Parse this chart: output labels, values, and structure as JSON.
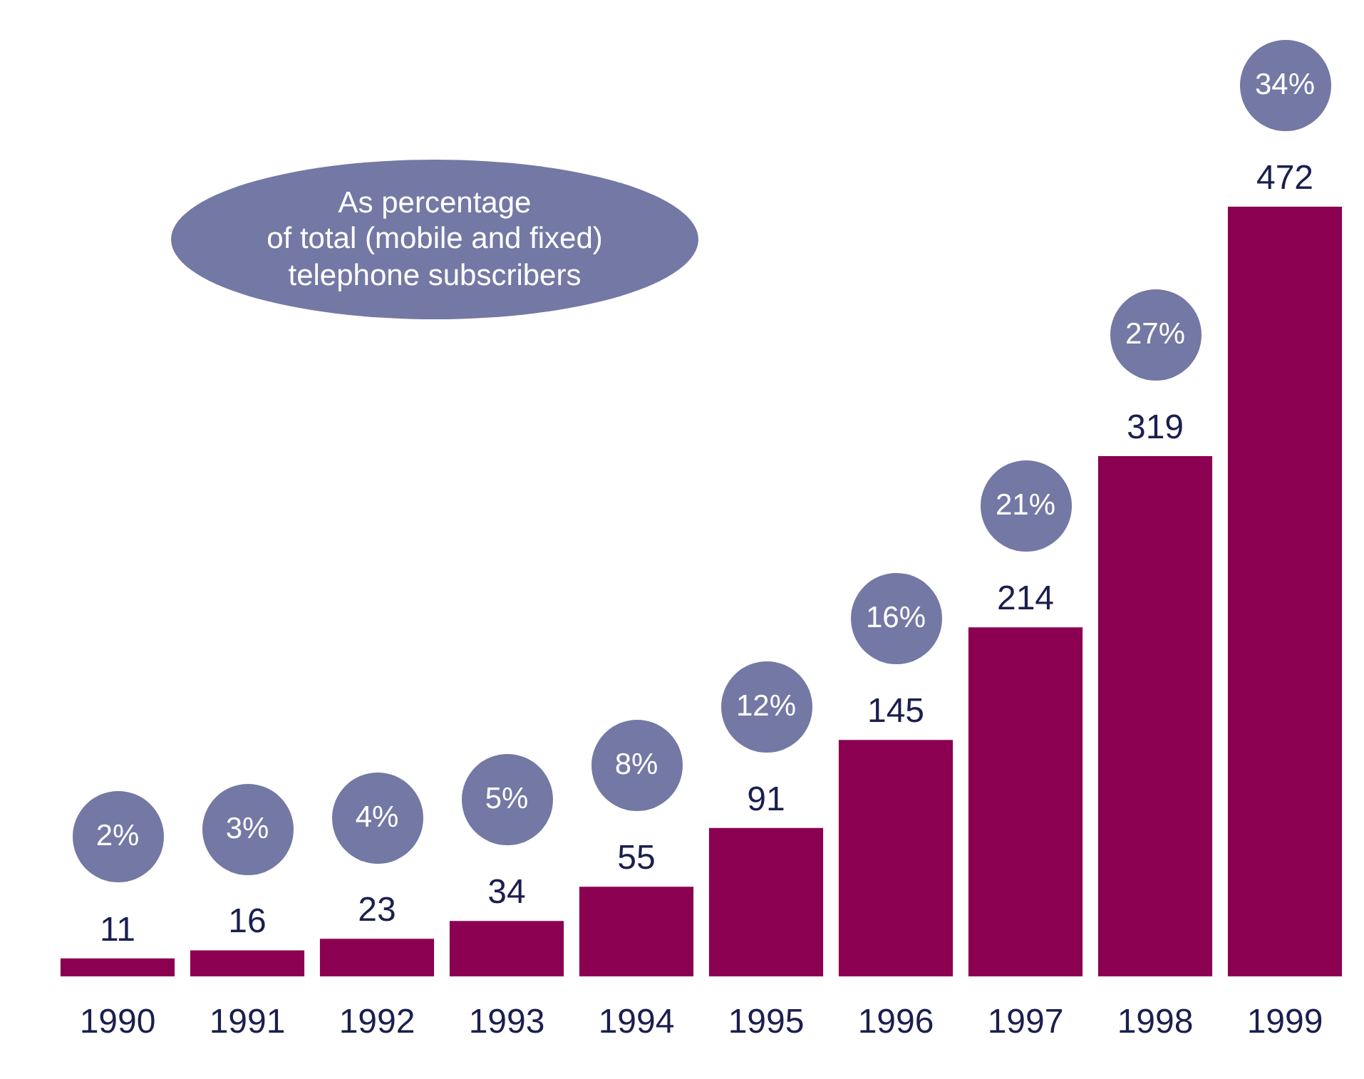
{
  "chart_data": {
    "type": "bar",
    "categories": [
      "1990",
      "1991",
      "1992",
      "1993",
      "1994",
      "1995",
      "1996",
      "1997",
      "1998",
      "1999"
    ],
    "values": [
      11,
      16,
      23,
      34,
      55,
      91,
      145,
      214,
      319,
      472
    ],
    "color": "#8b0050",
    "data_labels": true,
    "annotations": [
      "As percentage\nof total (mobile and fixed)\ntelephone subscribers",
      "2%",
      "3%",
      "4%",
      "5%",
      "8%",
      "12%",
      "16%",
      "21%",
      "27%",
      "34%"
    ]
  }
}
